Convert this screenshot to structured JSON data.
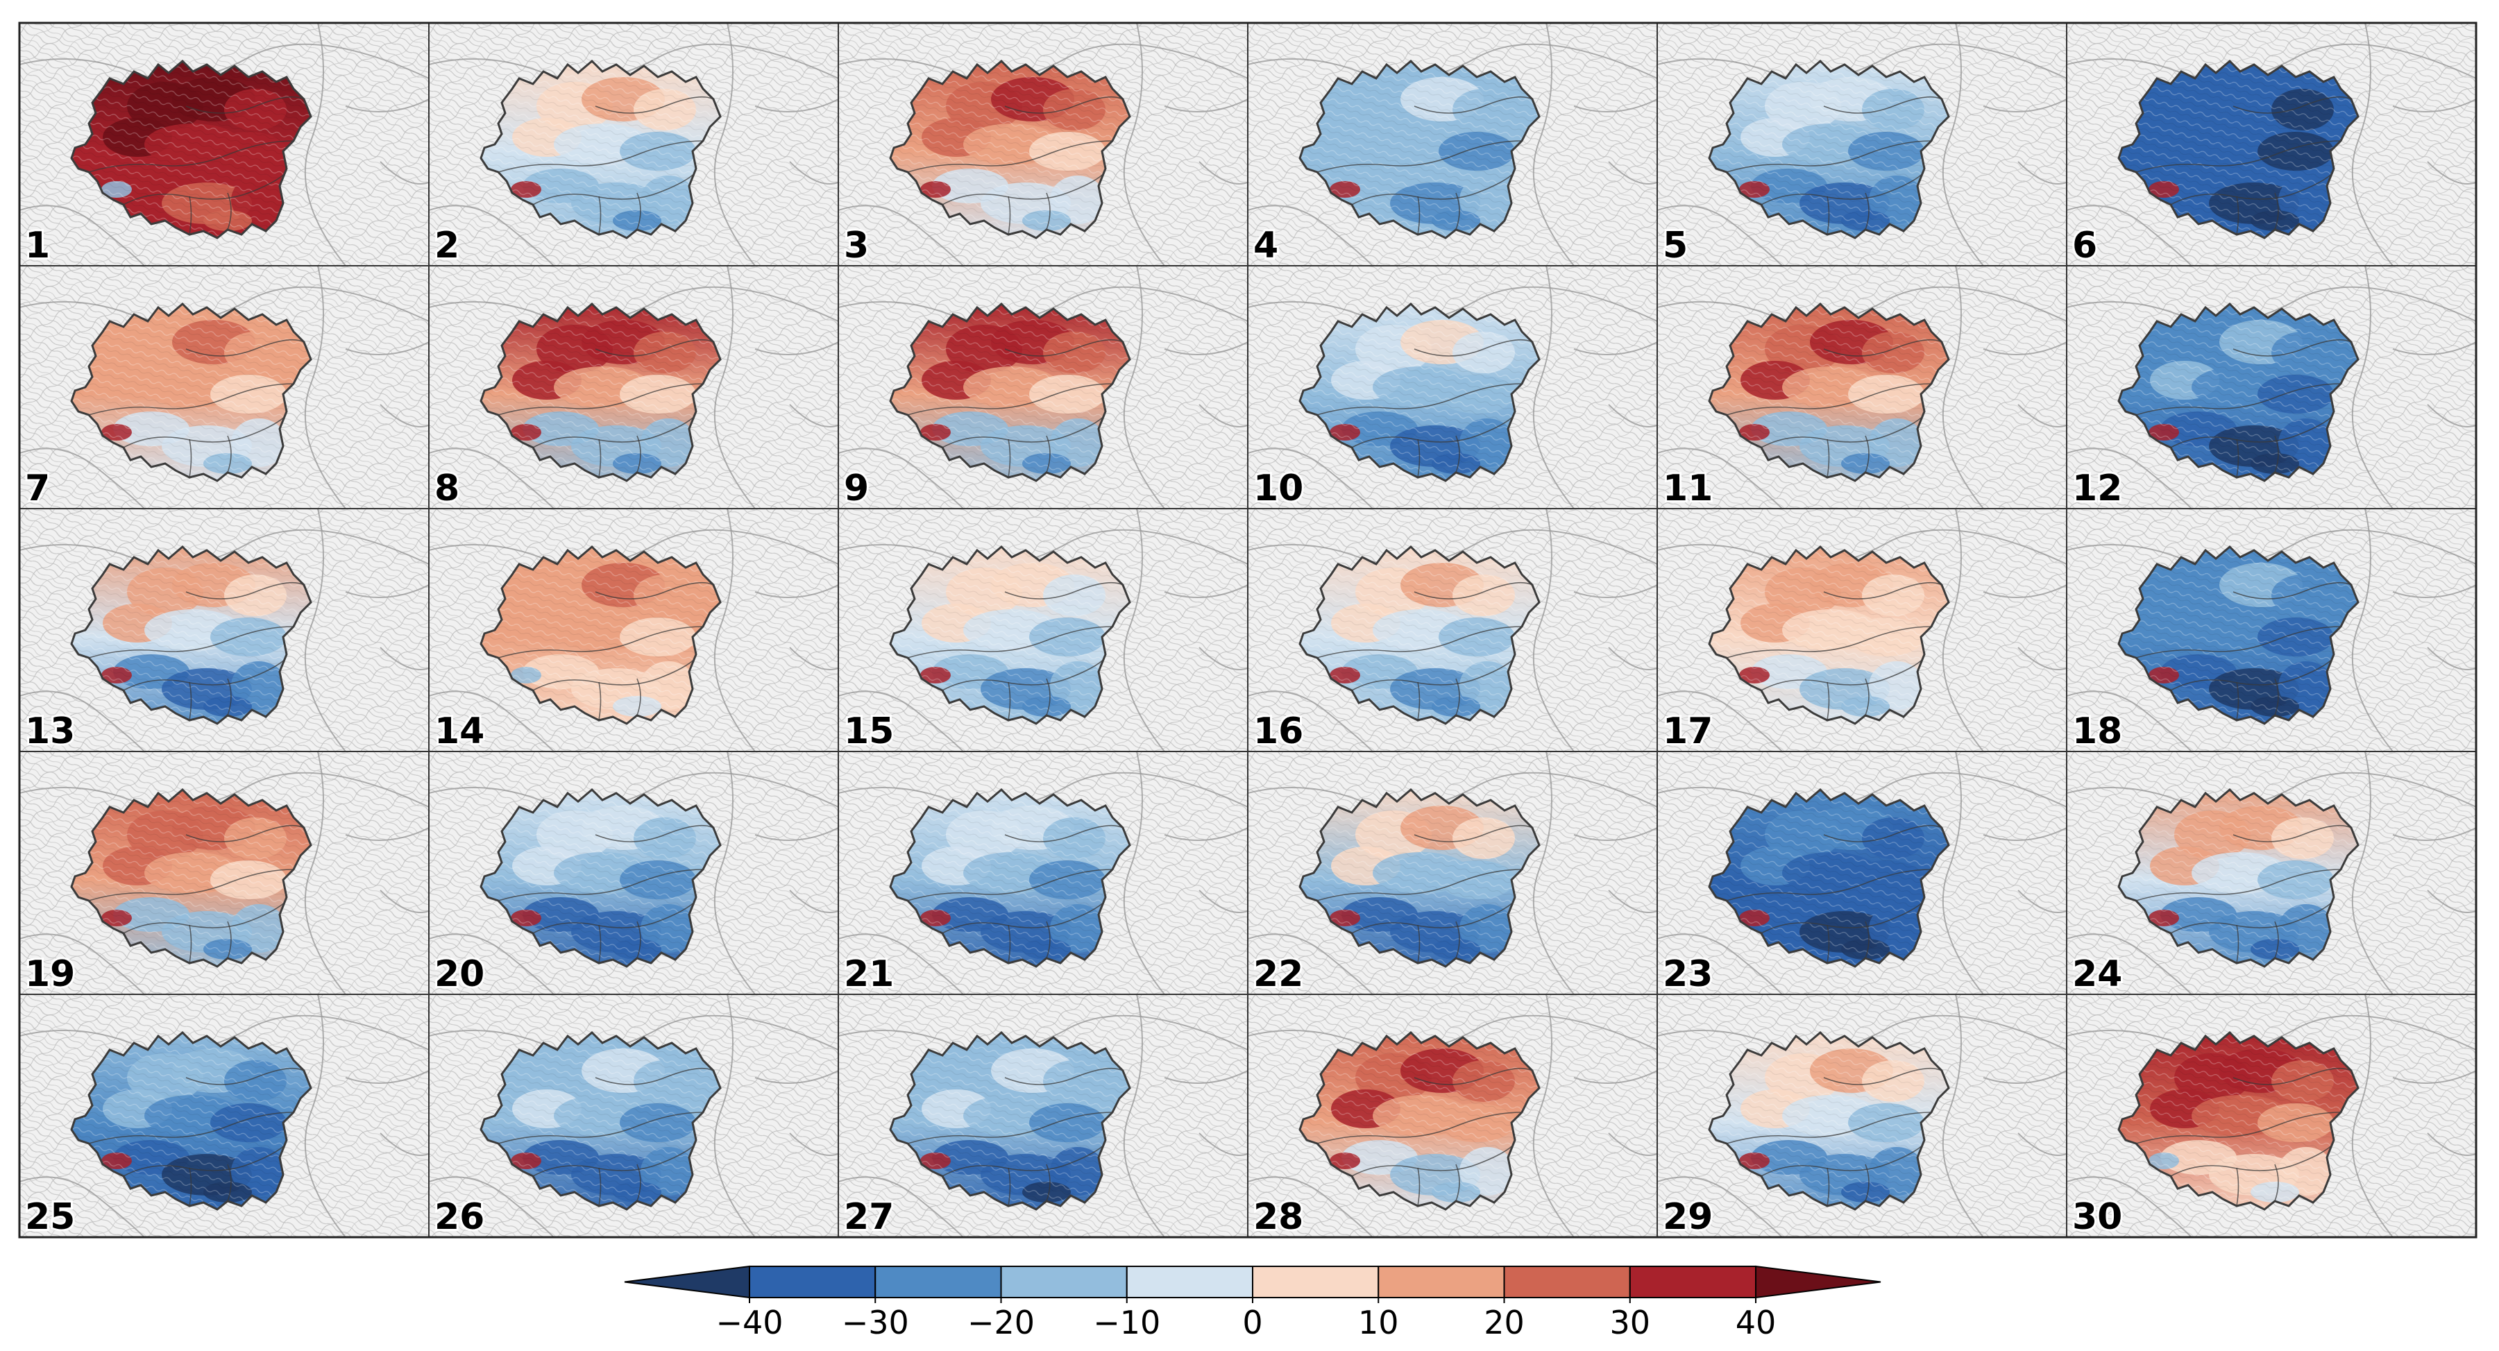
{
  "chart_data": {
    "type": "heatmap",
    "description_note": "",
    "grid": {
      "rows": 5,
      "columns": 6
    },
    "panels": [
      {
        "label": "1",
        "dominant_value": 38,
        "north_value": 40,
        "south_value": 30
      },
      {
        "label": "2",
        "dominant_value": -10,
        "north_value": 5,
        "south_value": -15
      },
      {
        "label": "3",
        "dominant_value": 10,
        "north_value": 25,
        "south_value": -5
      },
      {
        "label": "4",
        "dominant_value": -20,
        "north_value": -15,
        "south_value": -20
      },
      {
        "label": "5",
        "dominant_value": -20,
        "north_value": -10,
        "south_value": -28
      },
      {
        "label": "6",
        "dominant_value": -40,
        "north_value": -40,
        "south_value": -40
      },
      {
        "label": "7",
        "dominant_value": 10,
        "north_value": 15,
        "south_value": -5
      },
      {
        "label": "8",
        "dominant_value": 10,
        "north_value": 30,
        "south_value": -15
      },
      {
        "label": "9",
        "dominant_value": 10,
        "north_value": 30,
        "south_value": -15
      },
      {
        "label": "10",
        "dominant_value": -15,
        "north_value": -5,
        "south_value": -30
      },
      {
        "label": "11",
        "dominant_value": 10,
        "north_value": 28,
        "south_value": -15
      },
      {
        "label": "12",
        "dominant_value": -30,
        "north_value": -22,
        "south_value": -38
      },
      {
        "label": "13",
        "dominant_value": -10,
        "north_value": 10,
        "south_value": -30
      },
      {
        "label": "14",
        "dominant_value": 10,
        "north_value": 15,
        "south_value": 5
      },
      {
        "label": "15",
        "dominant_value": -10,
        "north_value": 0,
        "south_value": -18
      },
      {
        "label": "16",
        "dominant_value": -10,
        "north_value": 5,
        "south_value": -18
      },
      {
        "label": "17",
        "dominant_value": 5,
        "north_value": 12,
        "south_value": -10
      },
      {
        "label": "18",
        "dominant_value": -30,
        "north_value": -25,
        "south_value": -38
      },
      {
        "label": "19",
        "dominant_value": 10,
        "north_value": 22,
        "south_value": -15
      },
      {
        "label": "20",
        "dominant_value": -20,
        "north_value": -10,
        "south_value": -32
      },
      {
        "label": "21",
        "dominant_value": -20,
        "north_value": -10,
        "south_value": -32
      },
      {
        "label": "22",
        "dominant_value": -15,
        "north_value": 5,
        "south_value": -32
      },
      {
        "label": "23",
        "dominant_value": -35,
        "north_value": -30,
        "south_value": -40
      },
      {
        "label": "24",
        "dominant_value": -10,
        "north_value": 10,
        "south_value": -25
      },
      {
        "label": "25",
        "dominant_value": -30,
        "north_value": -20,
        "south_value": -38
      },
      {
        "label": "26",
        "dominant_value": -20,
        "north_value": -12,
        "south_value": -32
      },
      {
        "label": "27",
        "dominant_value": -20,
        "north_value": -12,
        "south_value": -35
      },
      {
        "label": "28",
        "dominant_value": 15,
        "north_value": 28,
        "south_value": -10
      },
      {
        "label": "29",
        "dominant_value": -10,
        "north_value": 5,
        "south_value": -25
      },
      {
        "label": "30",
        "dominant_value": 20,
        "north_value": 30,
        "south_value": 5
      }
    ],
    "colorbar": {
      "levels": [
        -40,
        -30,
        -20,
        -10,
        0,
        10,
        20,
        30,
        40
      ],
      "tick_labels": [
        "−40",
        "−30",
        "−20",
        "−10",
        "0",
        "10",
        "20",
        "30",
        "40"
      ],
      "colors": [
        "#1f3a66",
        "#2e63ad",
        "#4f8ac4",
        "#93bddd",
        "#d3e3f0",
        "#f9d9c6",
        "#eba282",
        "#cf6552",
        "#a8222c",
        "#6b0f18"
      ],
      "extend": "both",
      "orientation": "horizontal",
      "placement": "bottom"
    },
    "title": "",
    "xlabel": "",
    "ylabel": ""
  }
}
